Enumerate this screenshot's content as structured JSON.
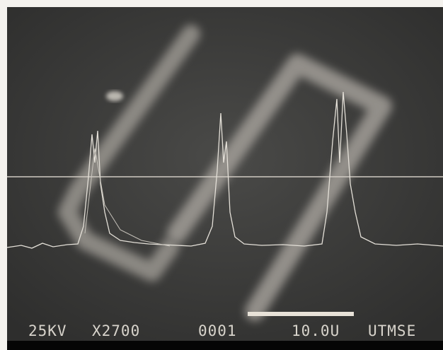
{
  "caption": {
    "voltage": "25KV",
    "magnification": "X2700",
    "frame": "0001",
    "scale": "10.0U",
    "lab": "UTMSE"
  }
}
